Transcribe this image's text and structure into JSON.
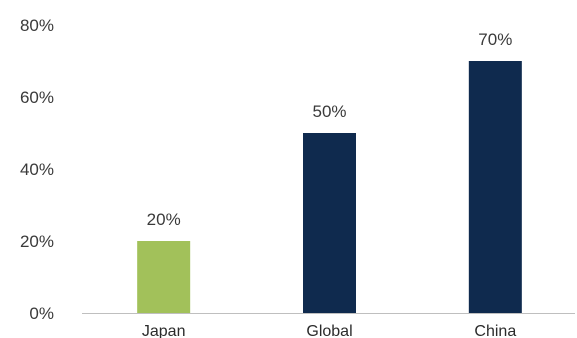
{
  "chart_data": {
    "type": "bar",
    "title": "",
    "xlabel": "",
    "ylabel": "",
    "categories": [
      "Japan",
      "Global",
      "China"
    ],
    "values": [
      20,
      50,
      70
    ],
    "value_labels": [
      "20%",
      "50%",
      "70%"
    ],
    "ylim": [
      0,
      80
    ],
    "yticks": [
      0,
      20,
      40,
      60,
      80
    ],
    "ytick_labels": [
      "0%",
      "20%",
      "40%",
      "60%",
      "80%"
    ],
    "grid": false,
    "legend": "none",
    "colors": [
      "#a2c15a",
      "#0f2a4e",
      "#0f2a4e"
    ],
    "axis_color": "#bfbfbf"
  }
}
